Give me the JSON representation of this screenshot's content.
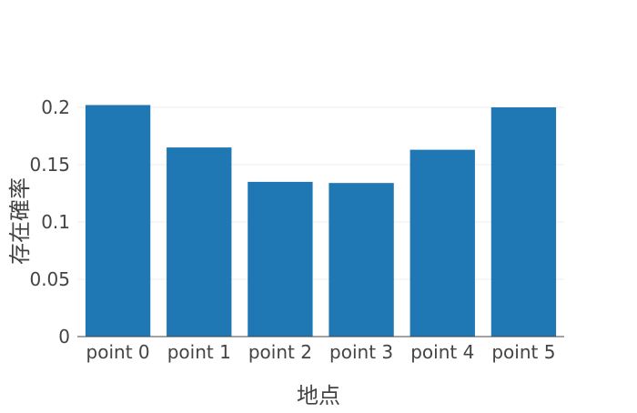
{
  "chart_data": {
    "type": "bar",
    "title": "",
    "xlabel": "地点",
    "ylabel": "存在確率",
    "categories": [
      "point 0",
      "point 1",
      "point 2",
      "point 3",
      "point 4",
      "point 5"
    ],
    "values": [
      0.202,
      0.165,
      0.135,
      0.134,
      0.163,
      0.2
    ],
    "ylim": [
      0,
      0.2
    ],
    "yticks": [
      0,
      0.05,
      0.1,
      0.15,
      0.2
    ],
    "ytick_labels": [
      "0",
      "0.05",
      "0.1",
      "0.15",
      "0.2"
    ],
    "grid": true,
    "bar_color": "#1f77b4",
    "grid_color": "#eeeeee",
    "axis_color": "#444444"
  }
}
